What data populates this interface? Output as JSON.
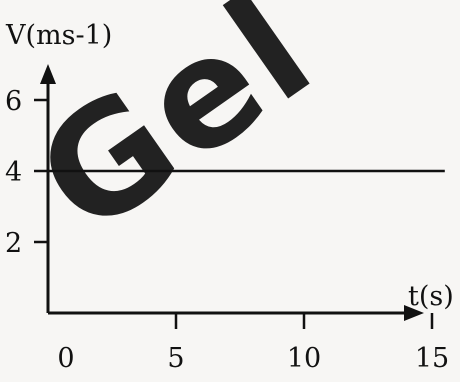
{
  "watermark": {
    "text": "Gel",
    "color": "#e4161b"
  },
  "chart_data": {
    "type": "line",
    "xlabel": "t(s)",
    "ylabel": "V(ms-1)",
    "x_ticks": [
      0,
      5,
      10,
      15
    ],
    "y_ticks": [
      2,
      4,
      6
    ],
    "xlim": [
      0,
      16.5
    ],
    "ylim": [
      0,
      6.5
    ],
    "series": [
      {
        "x": [
          0,
          15.5
        ],
        "values": [
          4,
          4
        ],
        "color": "#111111"
      }
    ],
    "grid": false
  }
}
